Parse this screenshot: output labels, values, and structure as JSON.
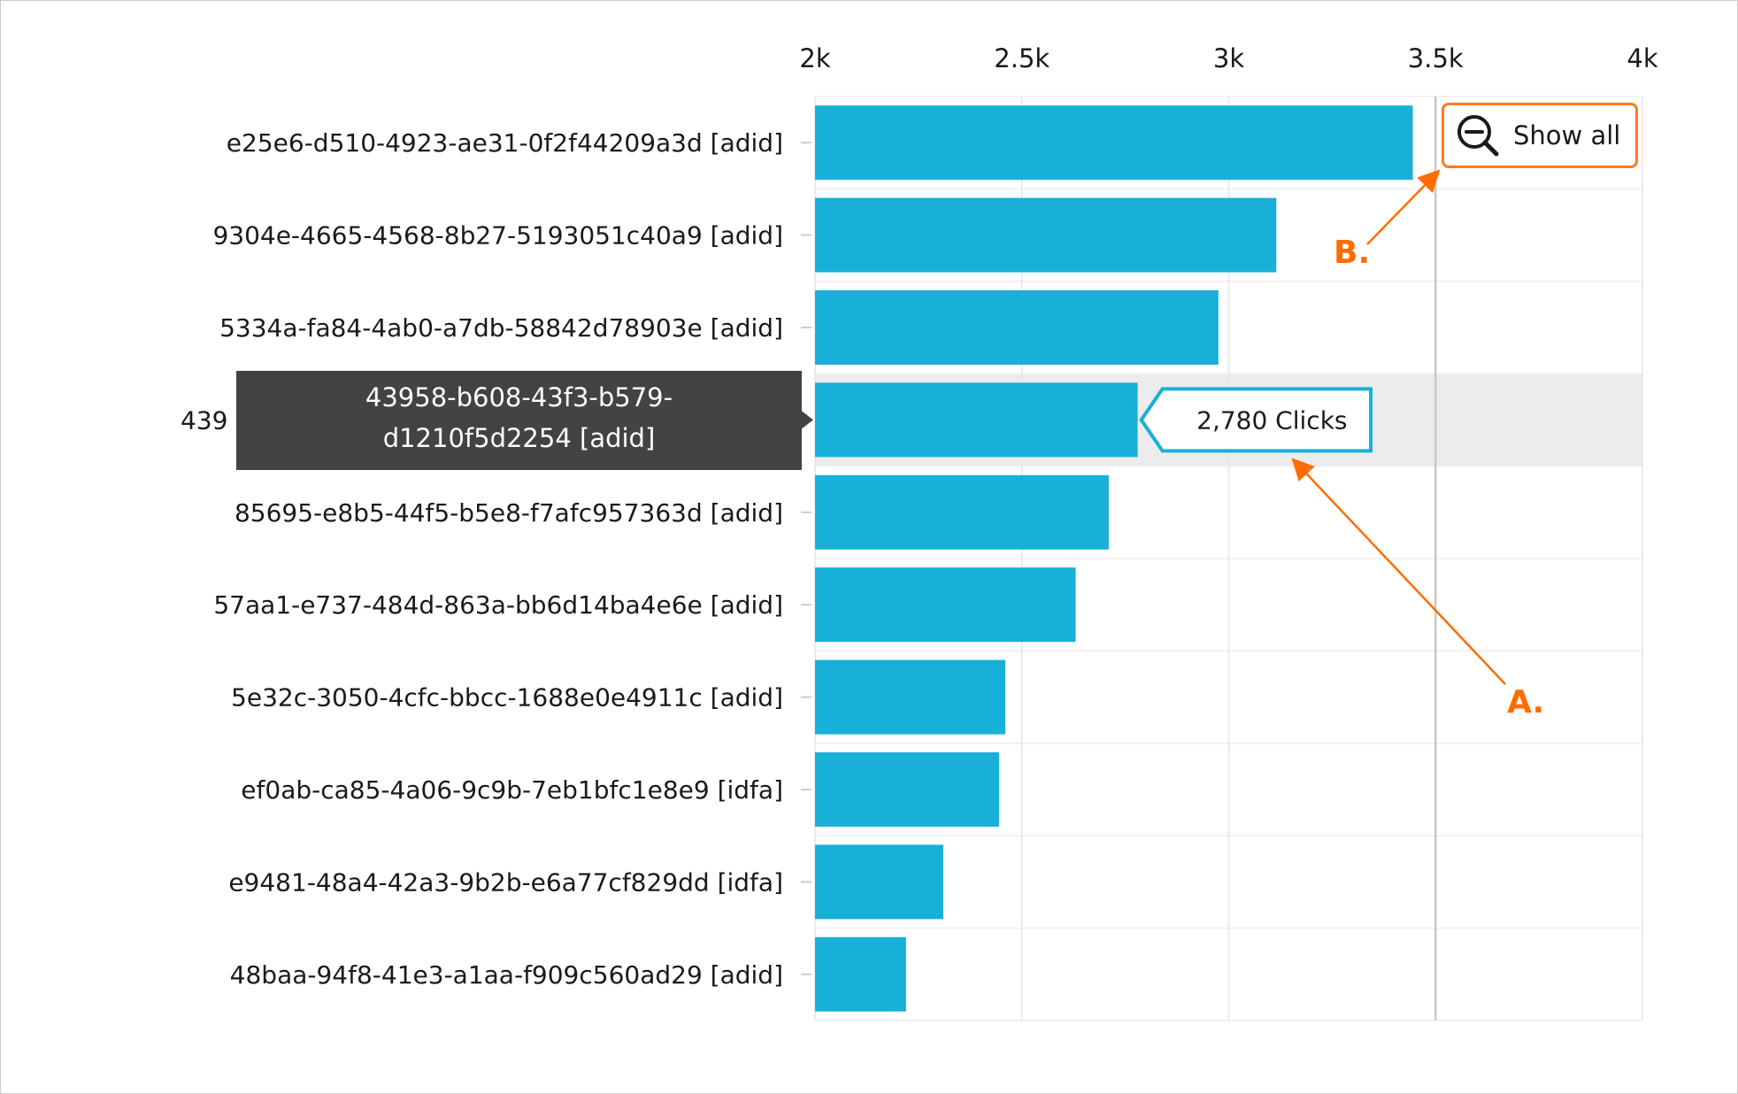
{
  "chart_data": {
    "type": "bar",
    "orientation": "horizontal",
    "categories": [
      "e25e6-d510-4923-ae31-0f2f44209a3d [adid]",
      "9304e-4665-4568-8b27-5193051c40a9 [adid]",
      "5334a-fa84-4ab0-a7db-58842d78903e [adid]",
      "43958-b608-43f3-b579-d1210f5d2254 [adid]",
      "85695-e8b5-44f5-b5e8-f7afc957363d [adid]",
      "57aa1-e737-484d-863a-bb6d14ba4e6e [adid]",
      "5e32c-3050-4cfc-bbcc-1688e0e4911c [adid]",
      "ef0ab-ca85-4a06-9c9b-7eb1bfc1e8e9 [idfa]",
      "e9481-48a4-42a3-9b2b-e6a77cf829dd [idfa]",
      "48baa-94f8-41e3-a1aa-f909c560ad29 [adid]"
    ],
    "values": [
      3445,
      3115,
      2975,
      2780,
      2710,
      2630,
      2460,
      2445,
      2310,
      2220
    ],
    "xlim": [
      2000,
      4000
    ],
    "x_ticks": [
      "2k",
      "2.5k",
      "3k",
      "3.5k",
      "4k"
    ],
    "x_tick_values": [
      2000,
      2500,
      3000,
      3500,
      4000
    ],
    "xaxis_position": "top",
    "grid": true,
    "bar_color": "#18b0d8",
    "highlighted_index": 3,
    "value_tooltip": "2,780 Clicks",
    "category_tooltip_lines": [
      "43958-b608-43f3-b579-",
      "d1210f5d2254 [adid]"
    ],
    "visible_truncated_label": "439"
  },
  "toolbar": {
    "show_all_label": "Show all",
    "icon": "zoom-out-icon"
  },
  "annotations": {
    "a_label": "A.",
    "b_label": "B.",
    "color": "#ff6d00"
  }
}
